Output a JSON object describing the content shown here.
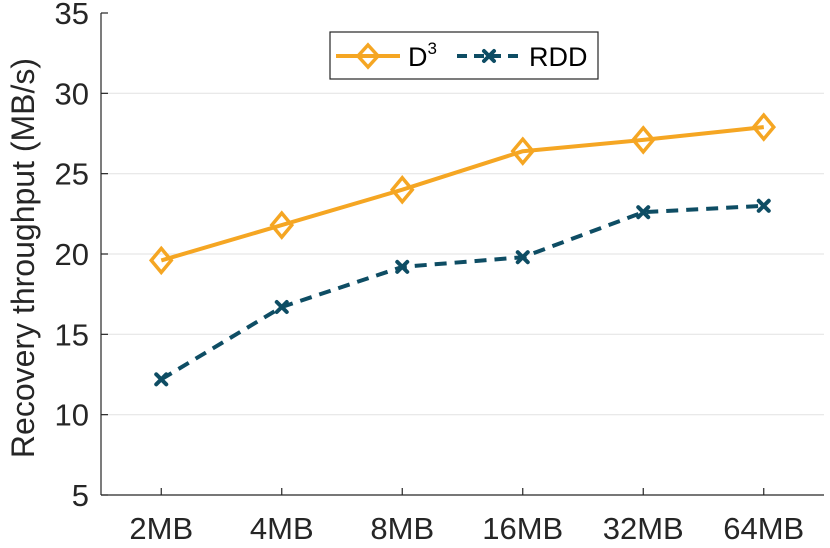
{
  "chart_data": {
    "type": "line",
    "categories": [
      "2MB",
      "4MB",
      "8MB",
      "16MB",
      "32MB",
      "64MB"
    ],
    "series": [
      {
        "name": "D",
        "name_superscript": "3",
        "color": "#F5A623",
        "marker": "diamond",
        "line_style": "solid",
        "values": [
          19.6,
          21.8,
          24.0,
          26.4,
          27.1,
          27.9
        ]
      },
      {
        "name": "RDD",
        "color": "#0E4D64",
        "marker": "x",
        "line_style": "dashed",
        "values": [
          12.2,
          16.7,
          19.2,
          19.8,
          22.6,
          23.0
        ]
      }
    ],
    "xlabel": "",
    "ylabel": "Recovery throughput (MB/s)",
    "ylim": [
      5,
      35
    ],
    "yticks": [
      "5",
      "10",
      "15",
      "20",
      "25",
      "30",
      "35"
    ],
    "grid": "horizontal",
    "legend_position": "top-right"
  }
}
